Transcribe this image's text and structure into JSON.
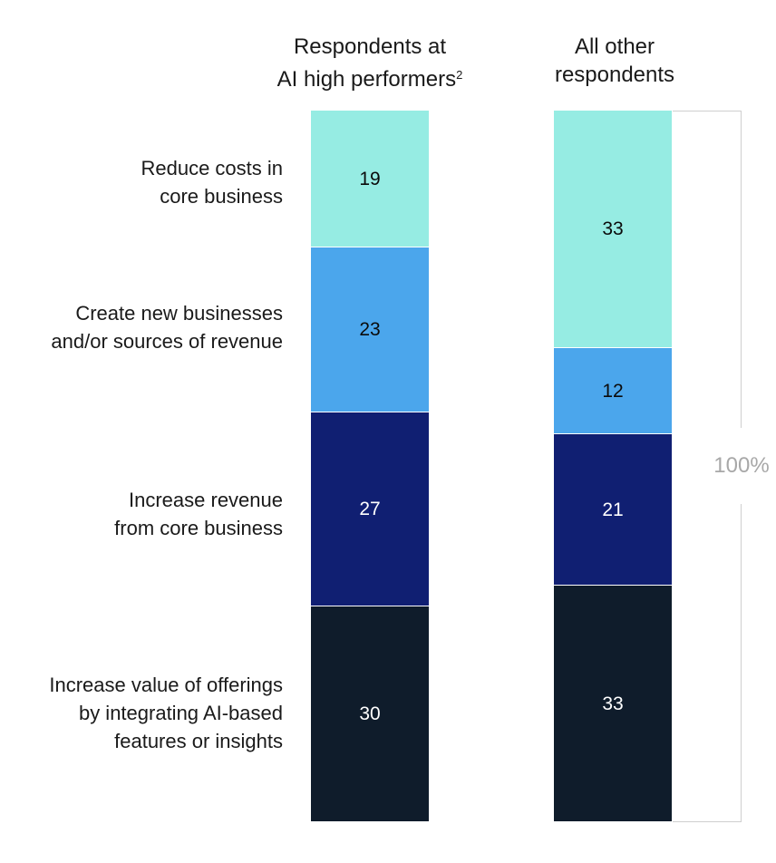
{
  "chart_data": {
    "type": "bar",
    "stacked": true,
    "percent_total": 100,
    "categories": [
      "Respondents at AI high performers",
      "All other respondents"
    ],
    "category_labels": {
      "high_performers": {
        "text": "Respondents at AI high performers",
        "footnote": "2"
      },
      "others": {
        "text": "All other respondents"
      }
    },
    "series": [
      {
        "name": "Reduce costs in core business",
        "values": [
          19,
          33
        ],
        "color": "#96ECE3",
        "text_color": "#0b0b0b"
      },
      {
        "name": "Create new businesses and/or sources of revenue",
        "values": [
          23,
          12
        ],
        "color": "#4BA6EC",
        "text_color": "#0b0b0b"
      },
      {
        "name": "Increase revenue from core business",
        "values": [
          27,
          21
        ],
        "color": "#101F72",
        "text_color": "#ffffff"
      },
      {
        "name": "Increase value of offerings by integrating AI-based features or insights",
        "values": [
          30,
          33
        ],
        "color": "#0F1C2B",
        "text_color": "#ffffff"
      }
    ],
    "bracket_label": "100%",
    "legend": "left"
  },
  "headers": {
    "high_performers": {
      "line1": "Respondents at",
      "line2": "AI high performers",
      "footnote": "2"
    },
    "others": {
      "line1": "All other",
      "line2": "respondents"
    }
  },
  "labels": [
    {
      "line1": "Reduce costs in",
      "line2": "core business"
    },
    {
      "line1": "Create new businesses",
      "line2": "and/or sources of revenue"
    },
    {
      "line1": "Increase revenue",
      "line2": "from core business"
    },
    {
      "line1": "Increase value of offerings",
      "line2": "by integrating AI-based",
      "line3": "features or insights"
    }
  ],
  "bracket": {
    "label": "100%"
  }
}
